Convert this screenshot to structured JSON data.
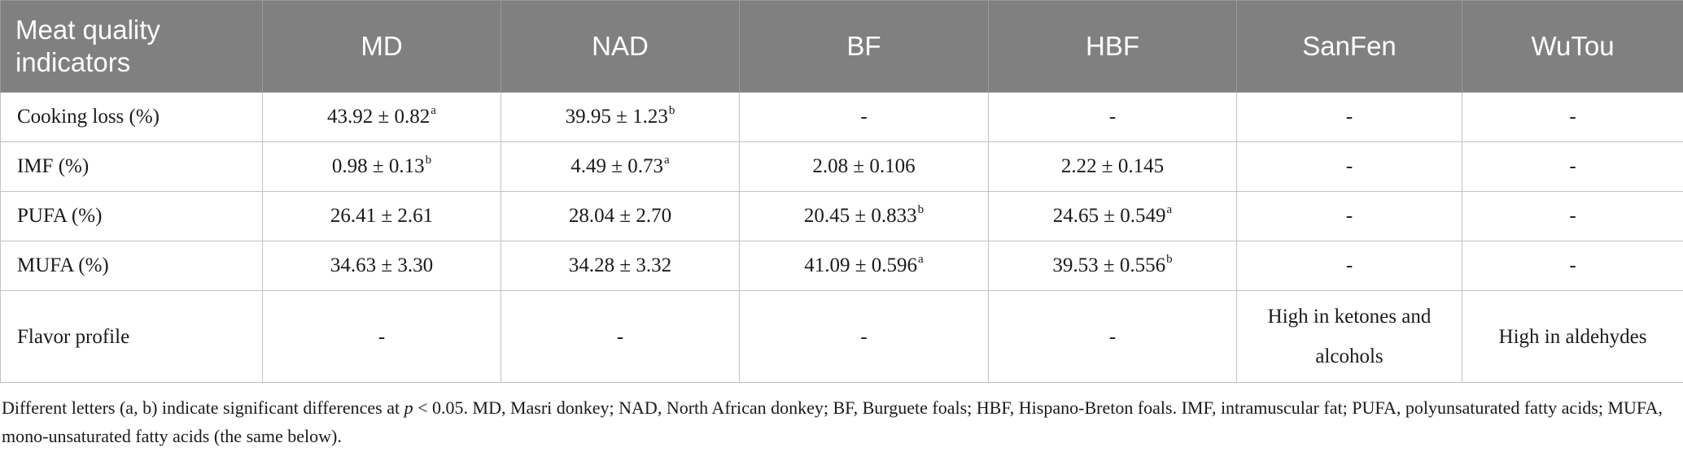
{
  "table": {
    "headers": [
      "Meat quality indicators",
      "MD",
      "NAD",
      "BF",
      "HBF",
      "SanFen",
      "WuTou"
    ],
    "rows": [
      {
        "label": "Cooking loss (%)",
        "cells": [
          {
            "v": "43.92 ± 0.82",
            "s": "a"
          },
          {
            "v": "39.95 ± 1.23",
            "s": "b"
          },
          {
            "v": "-",
            "s": ""
          },
          {
            "v": "-",
            "s": ""
          },
          {
            "v": "-",
            "s": ""
          },
          {
            "v": "-",
            "s": ""
          }
        ]
      },
      {
        "label": "IMF (%)",
        "cells": [
          {
            "v": "0.98 ± 0.13",
            "s": "b"
          },
          {
            "v": "4.49 ± 0.73",
            "s": "a"
          },
          {
            "v": "2.08 ± 0.106",
            "s": ""
          },
          {
            "v": "2.22 ± 0.145",
            "s": ""
          },
          {
            "v": "-",
            "s": ""
          },
          {
            "v": "-",
            "s": ""
          }
        ]
      },
      {
        "label": "PUFA (%)",
        "cells": [
          {
            "v": "26.41 ± 2.61",
            "s": ""
          },
          {
            "v": "28.04 ± 2.70",
            "s": ""
          },
          {
            "v": "20.45 ± 0.833",
            "s": "b"
          },
          {
            "v": "24.65 ± 0.549",
            "s": "a"
          },
          {
            "v": "-",
            "s": ""
          },
          {
            "v": "-",
            "s": ""
          }
        ]
      },
      {
        "label": "MUFA (%)",
        "cells": [
          {
            "v": "34.63 ± 3.30",
            "s": ""
          },
          {
            "v": "34.28 ± 3.32",
            "s": ""
          },
          {
            "v": "41.09 ± 0.596",
            "s": "a"
          },
          {
            "v": "39.53 ± 0.556",
            "s": "b"
          },
          {
            "v": "-",
            "s": ""
          },
          {
            "v": "-",
            "s": ""
          }
        ]
      },
      {
        "label": "Flavor profile",
        "cells": [
          {
            "v": "-",
            "s": ""
          },
          {
            "v": "-",
            "s": ""
          },
          {
            "v": "-",
            "s": ""
          },
          {
            "v": "-",
            "s": ""
          },
          {
            "v": "High in ketones and alcohols",
            "s": ""
          },
          {
            "v": "High in aldehydes",
            "s": ""
          }
        ]
      }
    ]
  },
  "footnote": {
    "before_p": "Different letters (a, b) indicate significant differences at ",
    "p_symbol": "p",
    "after_p": " < 0.05. MD, Masri donkey; NAD, North African donkey; BF, Burguete foals; HBF, Hispano-Breton foals. IMF, intramuscular fat; PUFA, polyunsaturated fatty acids; MUFA, mono-unsaturated fatty acids (the same below)."
  }
}
